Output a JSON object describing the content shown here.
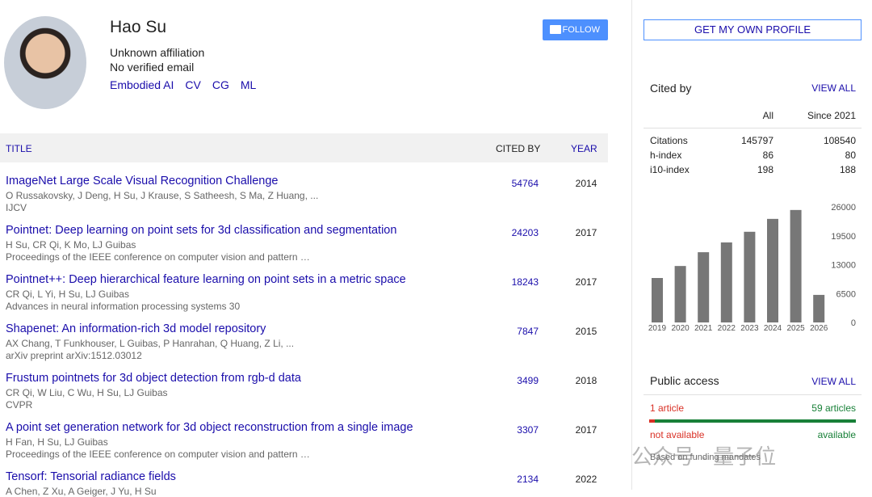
{
  "profile": {
    "name": "Hao Su",
    "affiliation": "Unknown affiliation",
    "email": "No verified email",
    "interests": [
      "Embodied AI",
      "CV",
      "CG",
      "ML"
    ]
  },
  "buttons": {
    "follow": "FOLLOW",
    "get_profile": "GET MY OWN PROFILE"
  },
  "table": {
    "headers": {
      "title": "TITLE",
      "cited_by": "CITED BY",
      "year": "YEAR"
    },
    "rows": [
      {
        "title": "ImageNet Large Scale Visual Recognition Challenge",
        "authors": "O Russakovsky, J Deng, H Su, J Krause, S Satheesh, S Ma, Z Huang, ...",
        "venue": "IJCV",
        "cited_by": "54764",
        "year": "2014"
      },
      {
        "title": "Pointnet: Deep learning on point sets for 3d classification and segmentation",
        "authors": "H Su, CR Qi, K Mo, LJ Guibas",
        "venue": "Proceedings of the IEEE conference on computer vision and pattern …",
        "cited_by": "24203",
        "year": "2017"
      },
      {
        "title": "Pointnet++: Deep hierarchical feature learning on point sets in a metric space",
        "authors": "CR Qi, L Yi, H Su, LJ Guibas",
        "venue": "Advances in neural information processing systems 30",
        "cited_by": "18243",
        "year": "2017"
      },
      {
        "title": "Shapenet: An information-rich 3d model repository",
        "authors": "AX Chang, T Funkhouser, L Guibas, P Hanrahan, Q Huang, Z Li, ...",
        "venue": "arXiv preprint arXiv:1512.03012",
        "cited_by": "7847",
        "year": "2015"
      },
      {
        "title": "Frustum pointnets for 3d object detection from rgb-d data",
        "authors": "CR Qi, W Liu, C Wu, H Su, LJ Guibas",
        "venue": "CVPR",
        "cited_by": "3499",
        "year": "2018"
      },
      {
        "title": "A point set generation network for 3d object reconstruction from a single image",
        "authors": "H Fan, H Su, LJ Guibas",
        "venue": "Proceedings of the IEEE conference on computer vision and pattern …",
        "cited_by": "3307",
        "year": "2017"
      },
      {
        "title": "Tensorf: Tensorial radiance fields",
        "authors": "A Chen, Z Xu, A Geiger, J Yu, H Su",
        "venue": "",
        "cited_by": "2134",
        "year": "2022"
      }
    ]
  },
  "cited_by": {
    "title": "Cited by",
    "view_all": "VIEW ALL",
    "columns": [
      "All",
      "Since 2021"
    ],
    "rows": [
      {
        "label": "Citations",
        "all": "145797",
        "since": "108540"
      },
      {
        "label": "h-index",
        "all": "86",
        "since": "80"
      },
      {
        "label": "i10-index",
        "all": "198",
        "since": "188"
      }
    ]
  },
  "chart_data": {
    "type": "bar",
    "categories": [
      "2019",
      "2020",
      "2021",
      "2022",
      "2023",
      "2024",
      "2025",
      "2026"
    ],
    "values": [
      10000,
      12700,
      15800,
      18000,
      20400,
      23300,
      25300,
      6200
    ],
    "color": "#777777",
    "ylim": [
      0,
      26000
    ],
    "yticks": [
      0,
      6500,
      13000,
      19500,
      26000
    ]
  },
  "public_access": {
    "title": "Public access",
    "view_all": "VIEW ALL",
    "not_available_count": "1 article",
    "available_count": "59 articles",
    "not_available": "not available",
    "available": "available",
    "note": "Based on funding mandates"
  },
  "watermark": "公众号 · 量子位"
}
